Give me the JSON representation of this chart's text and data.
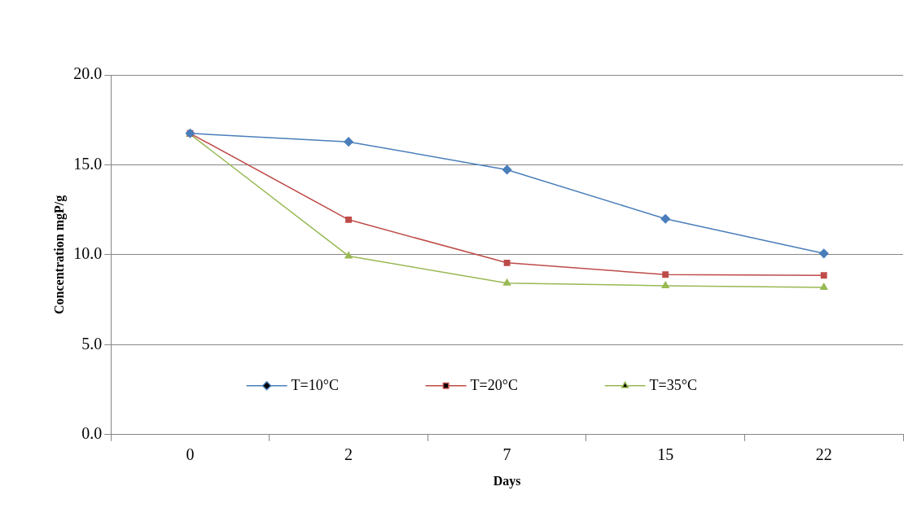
{
  "chart_data": {
    "type": "line",
    "xlabel": "Days",
    "ylabel": "Concentration mgP/g",
    "categories": [
      "0",
      "2",
      "7",
      "15",
      "22"
    ],
    "ylim": [
      0,
      20
    ],
    "yticks": [
      {
        "value": 0,
        "label": "0.0"
      },
      {
        "value": 5,
        "label": "5.0"
      },
      {
        "value": 10,
        "label": "10.0"
      },
      {
        "value": 15,
        "label": "15.0"
      },
      {
        "value": 20,
        "label": "20.0"
      }
    ],
    "grid": "y",
    "legend": "bottom",
    "line_style": "solid",
    "series": [
      {
        "name": "T=10°C",
        "color": "#4a7ebb",
        "marker": "diamond",
        "values": [
          16.75,
          16.28,
          14.73,
          12.0,
          10.07
        ]
      },
      {
        "name": "T=20°C",
        "color": "#be4b48",
        "marker": "square",
        "values": [
          16.75,
          11.95,
          9.55,
          8.9,
          8.85
        ]
      },
      {
        "name": "T=35°C",
        "color": "#98b954",
        "marker": "triangle",
        "values": [
          16.7,
          9.93,
          8.42,
          8.28,
          8.19
        ]
      }
    ]
  }
}
